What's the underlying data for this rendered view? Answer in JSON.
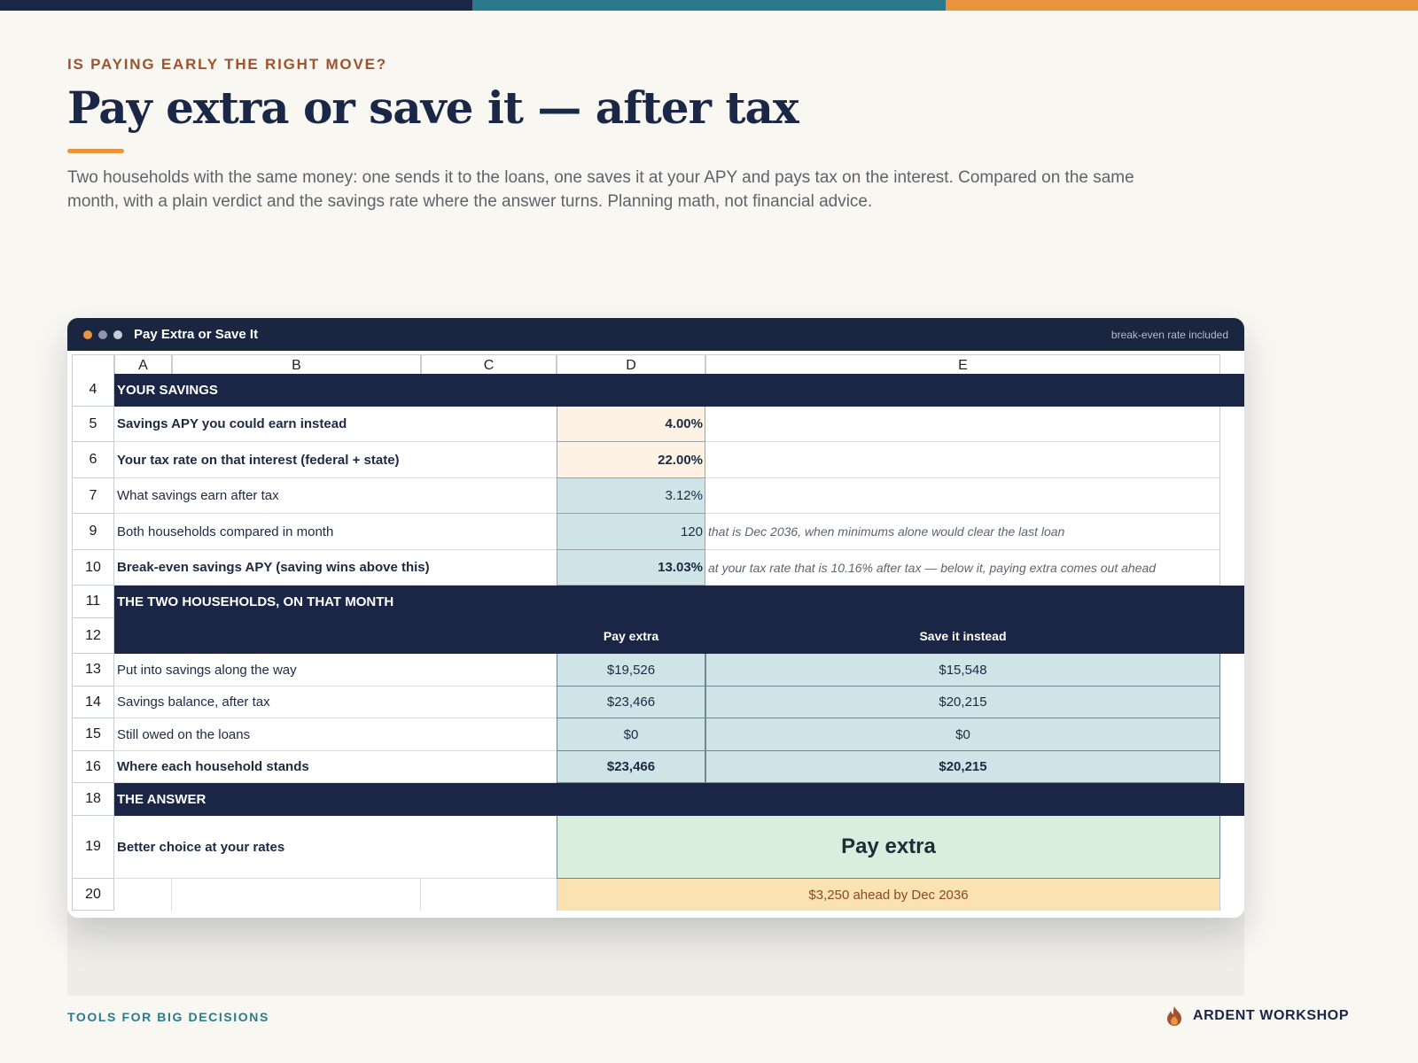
{
  "colors": {
    "navy": "#1b2646",
    "teal": "#2b7a8c",
    "orange": "#e8953e",
    "input_fill": "#fdf2e4",
    "calc_fill": "#cfe4e7",
    "verdict_fill": "#d9eedc",
    "ahead_fill": "#fbe2b2"
  },
  "eyebrow": "IS PAYING EARLY THE RIGHT MOVE?",
  "title": "Pay extra or save it — after tax",
  "lede": "Two households with the same money: one sends it to the loans, one saves it at your APY and pays tax on the interest. Compared on the same month, with a plain verdict and the savings rate where the answer turns. Planning math, not financial advice.",
  "window": {
    "title": "Pay Extra or Save It",
    "tag": "break-even rate included"
  },
  "columns": [
    "A",
    "B",
    "C",
    "D",
    "E"
  ],
  "rows": {
    "r4": {
      "num": "4",
      "section": "YOUR SAVINGS"
    },
    "r5": {
      "num": "5",
      "label": "Savings APY you could earn instead",
      "value": "4.00%"
    },
    "r6": {
      "num": "6",
      "label": "Your tax rate on that interest (federal + state)",
      "value": "22.00%"
    },
    "r7": {
      "num": "7",
      "label": "What savings earn after tax",
      "value": "3.12%"
    },
    "r9": {
      "num": "9",
      "label": "Both households compared in month",
      "value": "120",
      "note": "that is Dec 2036, when minimums alone would clear the last loan"
    },
    "r10": {
      "num": "10",
      "label": "Break-even savings APY  (saving wins above this)",
      "value": "13.03%",
      "note": "at your tax rate that is 10.16% after tax — below it, paying extra comes out ahead"
    },
    "r11": {
      "num": "11",
      "section": "THE TWO HOUSEHOLDS, ON THAT MONTH"
    },
    "r12": {
      "num": "12",
      "col_d": "Pay extra",
      "col_e": "Save it instead"
    },
    "r13": {
      "num": "13",
      "label": "Put into savings along the way",
      "pay": "$19,526",
      "save": "$15,548"
    },
    "r14": {
      "num": "14",
      "label": "Savings balance, after tax",
      "pay": "$23,466",
      "save": "$20,215"
    },
    "r15": {
      "num": "15",
      "label": "Still owed on the loans",
      "pay": "$0",
      "save": "$0"
    },
    "r16": {
      "num": "16",
      "label": "Where each household stands",
      "pay": "$23,466",
      "save": "$20,215"
    },
    "r18": {
      "num": "18",
      "section": "THE ANSWER"
    },
    "r19": {
      "num": "19",
      "label": "Better choice at your rates",
      "verdict": "Pay extra"
    },
    "r20": {
      "num": "20",
      "ahead": "$3,250 ahead by Dec 2036"
    }
  },
  "footer": {
    "left": "TOOLS FOR BIG DECISIONS",
    "brand": "ARDENT WORKSHOP",
    "brand_icon": "flame-icon"
  }
}
